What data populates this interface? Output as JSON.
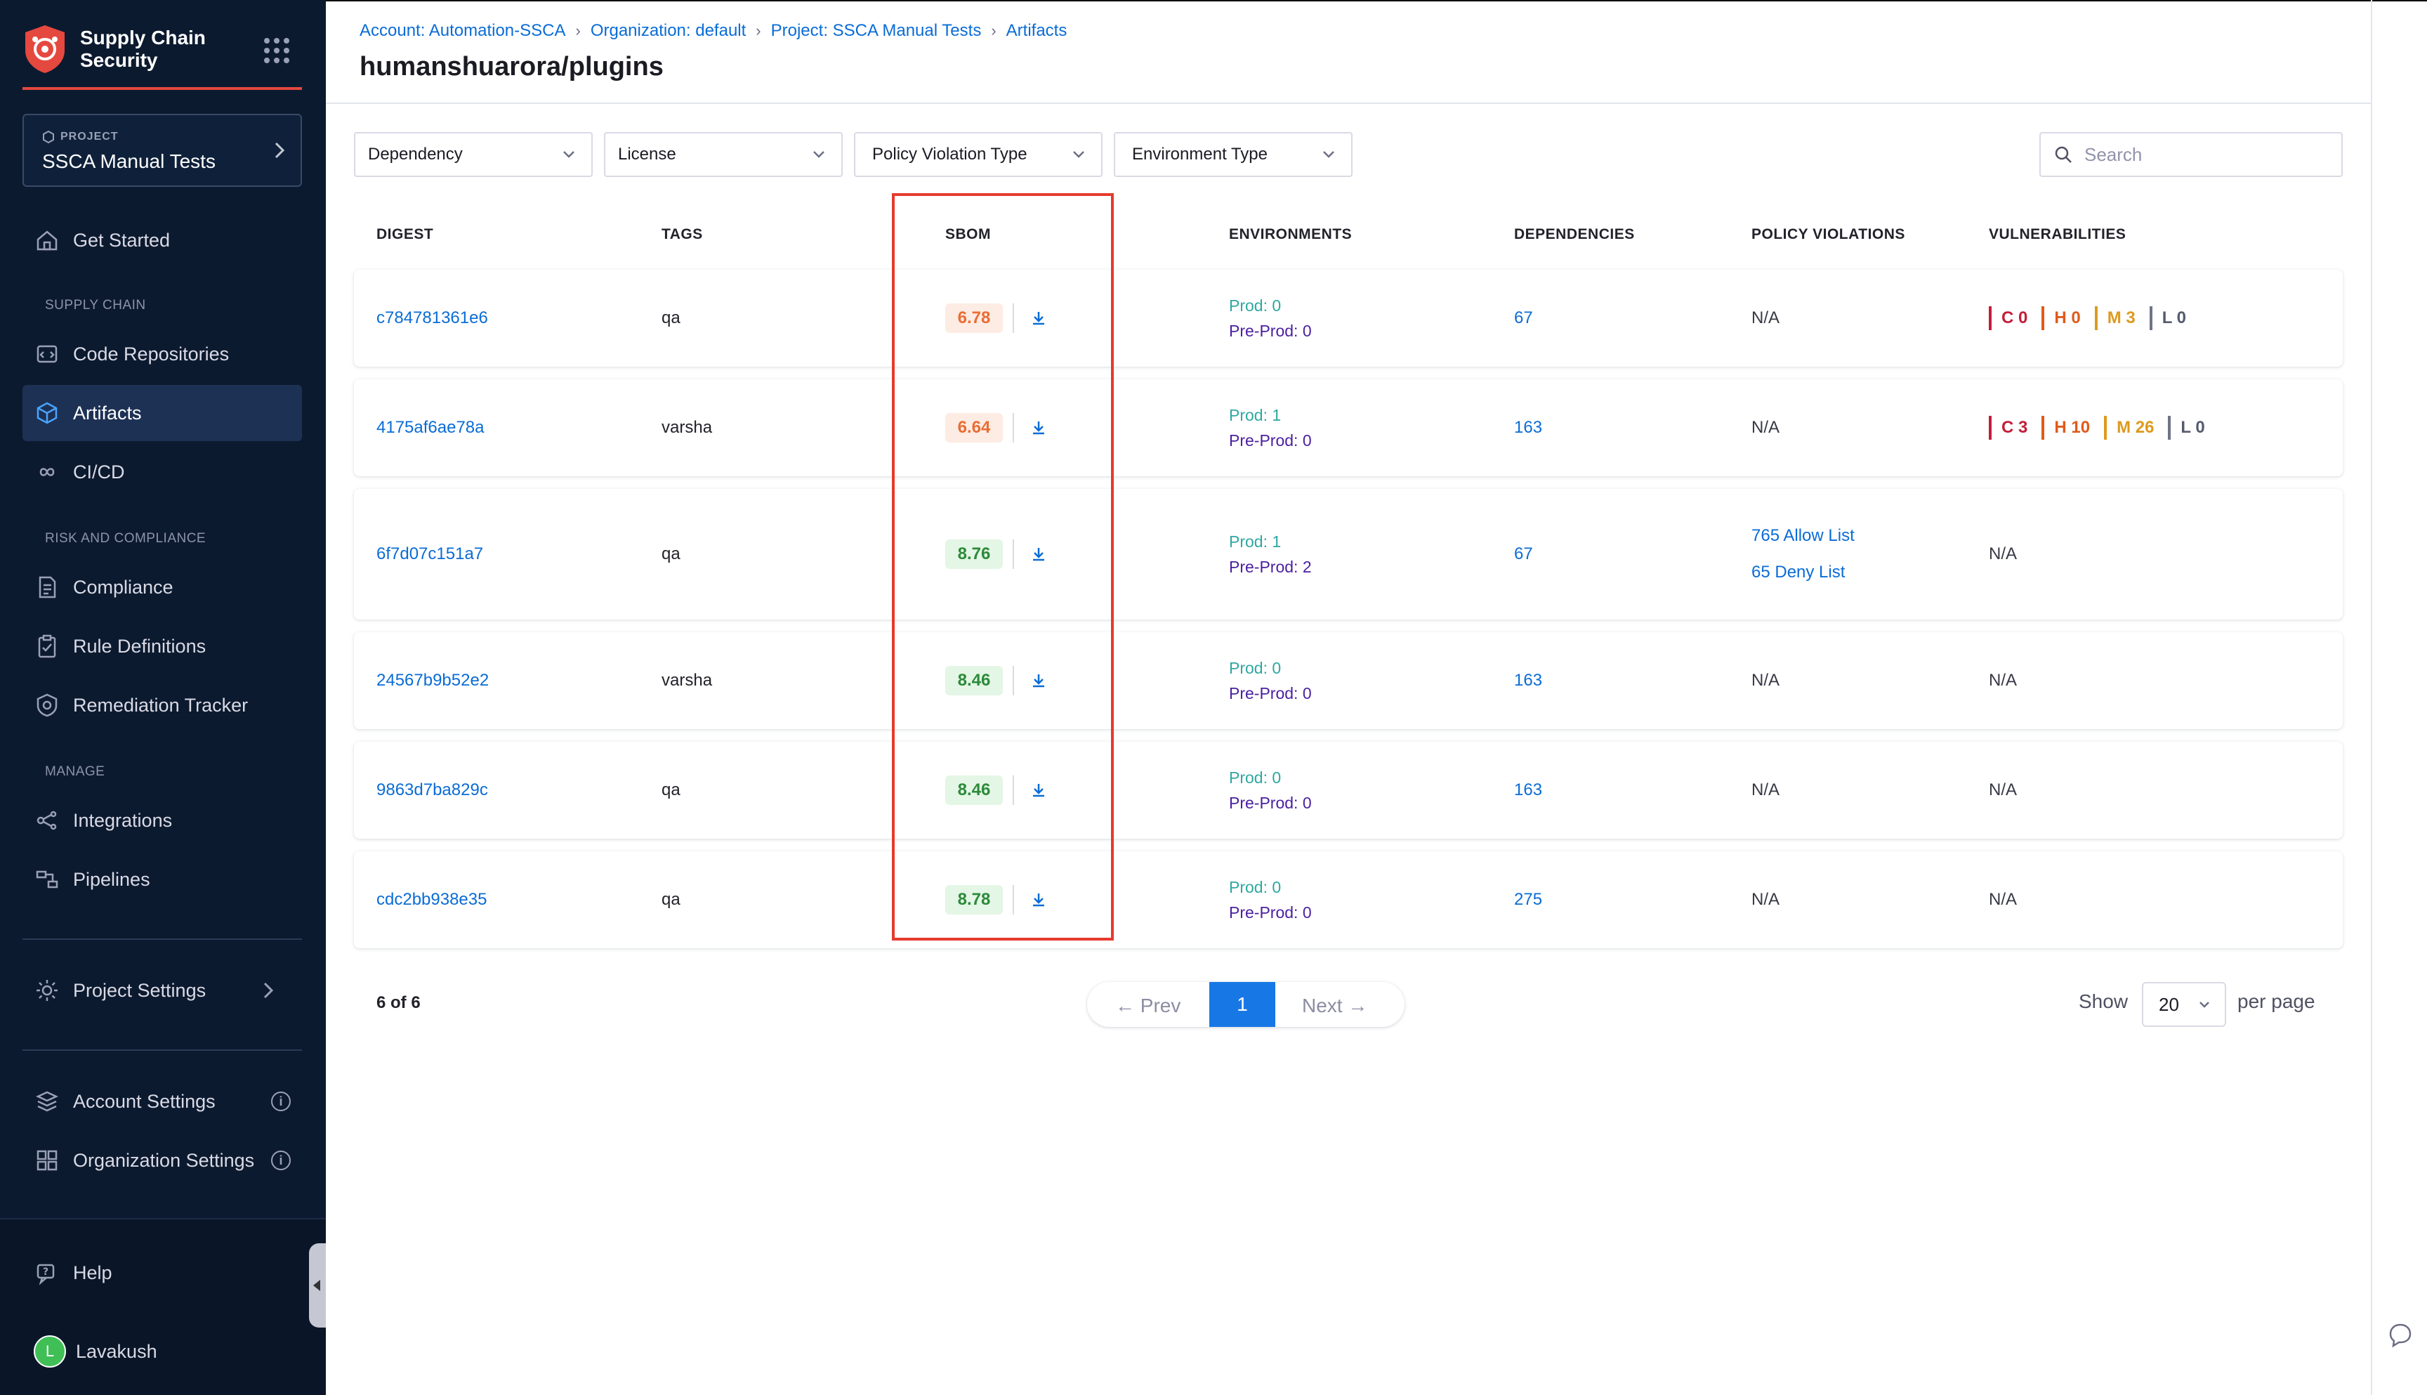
{
  "sidebar": {
    "brand_name_line1": "Supply Chain",
    "brand_name_line2": "Security",
    "project_label": "PROJECT",
    "project_name": "SSCA Manual Tests",
    "get_started": "Get Started",
    "section_supply_chain": "SUPPLY CHAIN",
    "code_repositories": "Code Repositories",
    "artifacts": "Artifacts",
    "cicd": "CI/CD",
    "section_risk": "RISK AND COMPLIANCE",
    "compliance": "Compliance",
    "rule_definitions": "Rule Definitions",
    "remediation_tracker": "Remediation Tracker",
    "section_manage": "MANAGE",
    "integrations": "Integrations",
    "pipelines": "Pipelines",
    "project_settings": "Project Settings",
    "account_settings": "Account Settings",
    "organization_settings": "Organization Settings",
    "help": "Help",
    "user_initial": "L",
    "user_name": "Lavakush"
  },
  "breadcrumb": {
    "account": "Account: Automation-SSCA",
    "organization": "Organization: default",
    "project": "Project: SSCA Manual Tests",
    "artifacts": "Artifacts"
  },
  "page_title": "humanshuarora/plugins",
  "filters": {
    "dependency": "Dependency",
    "license": "License",
    "policy_violation_type": "Policy Violation Type",
    "environment_type": "Environment Type",
    "search_placeholder": "Search"
  },
  "columns": {
    "digest": "DIGEST",
    "tags": "TAGS",
    "sbom": "SBOM",
    "environments": "ENVIRONMENTS",
    "dependencies": "DEPENDENCIES",
    "policy_violations": "POLICY VIOLATIONS",
    "vulnerabilities": "VULNERABILITIES"
  },
  "rows": [
    {
      "digest": "c784781361e6",
      "tag": "qa",
      "sbom_score": "6.78",
      "score_level": "warn",
      "prod": "Prod: 0",
      "preprod": "Pre-Prod: 0",
      "dependencies": "67",
      "policy": "N/A",
      "vuln": {
        "c": "C 0",
        "h": "H 0",
        "m": "M 3",
        "l": "L 0"
      }
    },
    {
      "digest": "4175af6ae78a",
      "tag": "varsha",
      "sbom_score": "6.64",
      "score_level": "warn",
      "prod": "Prod: 1",
      "preprod": "Pre-Prod: 0",
      "dependencies": "163",
      "policy": "N/A",
      "vuln": {
        "c": "C 3",
        "h": "H 10",
        "m": "M 26",
        "l": "L 0"
      }
    },
    {
      "digest": "6f7d07c151a7",
      "tag": "qa",
      "sbom_score": "8.76",
      "score_level": "good",
      "prod": "Prod: 1",
      "preprod": "Pre-Prod: 2",
      "dependencies": "67",
      "policy_allow": "765 Allow List",
      "policy_deny": "65 Deny List",
      "vuln_na": "N/A"
    },
    {
      "digest": "24567b9b52e2",
      "tag": "varsha",
      "sbom_score": "8.46",
      "score_level": "good",
      "prod": "Prod: 0",
      "preprod": "Pre-Prod: 0",
      "dependencies": "163",
      "policy": "N/A",
      "vuln_na": "N/A"
    },
    {
      "digest": "9863d7ba829c",
      "tag": "qa",
      "sbom_score": "8.46",
      "score_level": "good",
      "prod": "Prod: 0",
      "preprod": "Pre-Prod: 0",
      "dependencies": "163",
      "policy": "N/A",
      "vuln_na": "N/A"
    },
    {
      "digest": "cdc2bb938e35",
      "tag": "qa",
      "sbom_score": "8.78",
      "score_level": "good",
      "prod": "Prod: 0",
      "preprod": "Pre-Prod: 0",
      "dependencies": "275",
      "policy": "N/A",
      "vuln_na": "N/A"
    }
  ],
  "pagination": {
    "count": "6 of 6",
    "prev": "← Prev",
    "page": "1",
    "next": "Next →",
    "show": "Show",
    "per_page_value": "20",
    "per_page": "per page"
  },
  "colors": {
    "sidebar_bg": "#0c1a2f",
    "accent_red": "#e5483f",
    "link_blue": "#0a6cd6",
    "highlight": "#e53b2e"
  }
}
